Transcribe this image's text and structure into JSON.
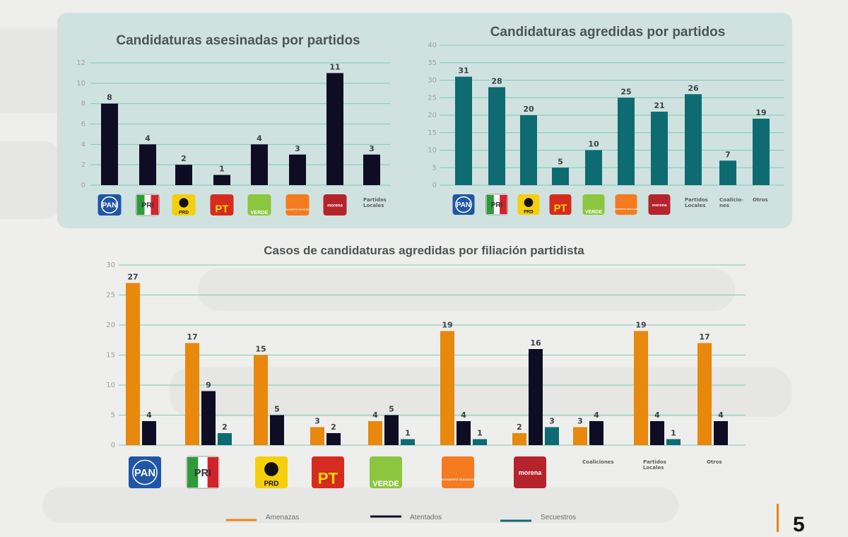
{
  "colors": {
    "amenazas": "#e8880c",
    "atentados": "#0e0d24",
    "secuestros": "#0e6b72",
    "agredidas": "#0e6b72",
    "asesinadas": "#0e0d24",
    "grid": "#7fcab9",
    "page_bar": "#e8880c"
  },
  "logos": {
    "PAN": {
      "text": "PAN",
      "bg": "#1f56a8",
      "fg": "#ffffff"
    },
    "PRI": {
      "text": "PRI",
      "bg": "#ffffff",
      "fg": "#333333"
    },
    "PRD": {
      "text": "PRD",
      "bg": "#f5cf0a",
      "fg": "#111111"
    },
    "PT": {
      "text": "PT",
      "bg": "#d62b1f",
      "fg": "#f5d90a"
    },
    "VERDE": {
      "text": "VERDE",
      "bg": "#8cc63f",
      "fg": "#ffffff"
    },
    "MC": {
      "text": "MOVIMIENTO CIUDADANO",
      "bg": "#f47b20",
      "fg": "#ffffff"
    },
    "MORENA": {
      "text": "morena",
      "bg": "#b5242c",
      "fg": "#ffffff"
    }
  },
  "page_number": "5",
  "chart_data": [
    {
      "id": "asesinadas",
      "type": "bar",
      "title": "Candidaturas asesinadas por partidos",
      "categories": [
        "PAN",
        "PRI",
        "PRD",
        "PT",
        "VERDE",
        "MC",
        "MORENA",
        "Partidos Locales"
      ],
      "category_labels": [
        "",
        "",
        "",
        "",
        "",
        "",
        "",
        "Partidos Locales"
      ],
      "values": [
        8,
        4,
        2,
        1,
        4,
        3,
        11,
        3
      ],
      "ylim": [
        0,
        12
      ],
      "yticks": [
        0,
        2,
        4,
        6,
        8,
        10,
        12
      ],
      "grid": true,
      "xlabel": "",
      "ylabel": ""
    },
    {
      "id": "agredidas",
      "type": "bar",
      "title": "Candidaturas agredidas por partidos",
      "categories": [
        "PAN",
        "PRI",
        "PRD",
        "PT",
        "VERDE",
        "MC",
        "MORENA",
        "Partidos Locales",
        "Coaliciones",
        "Otros"
      ],
      "category_labels": [
        "",
        "",
        "",
        "",
        "",
        "",
        "",
        "Partidos Locales",
        "Coalicio-nes",
        "Otros"
      ],
      "values": [
        31,
        28,
        20,
        5,
        10,
        25,
        21,
        26,
        7,
        19
      ],
      "ylim": [
        0,
        40
      ],
      "yticks": [
        0,
        5,
        10,
        15,
        20,
        25,
        30,
        35,
        40
      ],
      "grid": true,
      "xlabel": "",
      "ylabel": ""
    },
    {
      "id": "filiacion",
      "type": "bar",
      "title": "Casos de candidaturas agredidas por filiación partidista",
      "categories": [
        "PAN",
        "PRI",
        "PRD",
        "PT",
        "VERDE",
        "MC",
        "MORENA",
        "Coaliciones",
        "Partidos Locales",
        "Otros"
      ],
      "category_labels": [
        "",
        "",
        "",
        "",
        "",
        "",
        "",
        "Coaliciones",
        "Partidos Locales",
        "Otros"
      ],
      "series": [
        {
          "name": "Amenazas",
          "color_key": "amenazas",
          "values": [
            27,
            17,
            15,
            3,
            4,
            19,
            2,
            3,
            19,
            17
          ]
        },
        {
          "name": "Atentados",
          "color_key": "atentados",
          "values": [
            4,
            9,
            5,
            2,
            5,
            4,
            16,
            4,
            4,
            4
          ]
        },
        {
          "name": "Secuestros",
          "color_key": "secuestros",
          "values": [
            null,
            2,
            null,
            null,
            1,
            1,
            3,
            null,
            1,
            null
          ]
        }
      ],
      "ylim": [
        0,
        30
      ],
      "yticks": [
        0,
        5,
        10,
        15,
        20,
        25,
        30
      ],
      "grid": true,
      "legend": "bottom",
      "xlabel": "",
      "ylabel": ""
    }
  ]
}
